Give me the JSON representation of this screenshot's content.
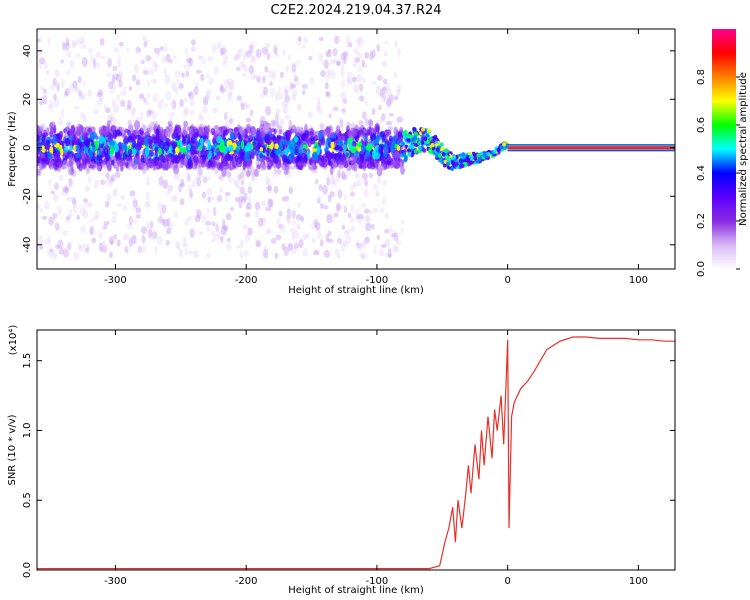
{
  "title": "C2E2.2024.219.04.37.R24",
  "chart_data": [
    {
      "type": "heatmap",
      "xlabel": "Height of straight line (km)",
      "ylabel": "Frequency (Hz)",
      "xlim": [
        -360,
        128
      ],
      "ylim": [
        -50,
        49
      ],
      "xticks": [
        -300,
        -200,
        -100,
        0,
        100
      ],
      "yticks": [
        -40,
        -20,
        0,
        20,
        40
      ],
      "colorbar": {
        "label": "Normalized spectral amplitude",
        "range": [
          0.0,
          1.0
        ],
        "ticks": [
          "0.0",
          "0.2",
          "0.4",
          "0.6",
          "0.8"
        ],
        "colors": [
          "#ffffff",
          "#d7b8f5",
          "#8a2be2",
          "#5a00ff",
          "#0000ff",
          "#00ffff",
          "#00ff00",
          "#ffff00",
          "#ff8000",
          "#ff0000",
          "#ff0090"
        ]
      },
      "description": {
        "noise_region_x": [
          -360,
          -80
        ],
        "transition_region_x": [
          -80,
          0
        ],
        "steady_line_x": [
          0,
          128
        ],
        "steady_line_frequency": 0
      }
    },
    {
      "type": "line",
      "xlabel": "Height of straight line (km)",
      "ylabel": "SNR (10 * v/v)",
      "yunit": "(x10⁴)",
      "xlim": [
        -360,
        128
      ],
      "ylim": [
        0,
        1.72
      ],
      "xticks": [
        -300,
        -200,
        -100,
        0,
        100
      ],
      "yticks": [
        "0.0",
        "0.5",
        "1.0",
        "1.5"
      ],
      "color": "#e8302a",
      "series": [
        {
          "x": [
            -360,
            -300,
            -200,
            -100,
            -60,
            -52,
            -48,
            -45,
            -42,
            -40,
            -38,
            -35,
            -32,
            -30,
            -28,
            -25,
            -22,
            -20,
            -18,
            -15,
            -12,
            -10,
            -8,
            -5,
            -3,
            0,
            1,
            3,
            5,
            10,
            15,
            20,
            25,
            30,
            40,
            50,
            60,
            70,
            80,
            90,
            100,
            110,
            120,
            128
          ],
          "y": [
            0.01,
            0.01,
            0.01,
            0.01,
            0.01,
            0.03,
            0.2,
            0.3,
            0.45,
            0.2,
            0.5,
            0.3,
            0.55,
            0.75,
            0.55,
            0.9,
            0.65,
            1.0,
            0.75,
            1.1,
            0.8,
            1.15,
            1.0,
            1.25,
            0.9,
            1.65,
            0.3,
            1.1,
            1.2,
            1.3,
            1.35,
            1.42,
            1.5,
            1.58,
            1.64,
            1.67,
            1.67,
            1.66,
            1.66,
            1.66,
            1.65,
            1.65,
            1.64,
            1.64
          ]
        }
      ]
    }
  ]
}
